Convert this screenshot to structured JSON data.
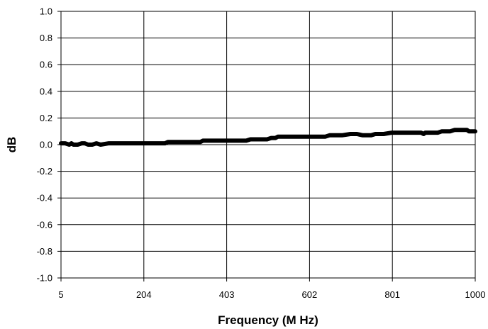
{
  "chart_data": {
    "type": "line",
    "title": "",
    "xlabel": "Frequency (M Hz)",
    "ylabel": "dB",
    "x_ticks": [
      "5",
      "204",
      "403",
      "602",
      "801",
      "1000"
    ],
    "y_ticks": [
      "1.0",
      "0.8",
      "0.6",
      "0.4",
      "0.2",
      "0.0",
      "-0.2",
      "-0.4",
      "-0.6",
      "-0.8",
      "-1.0"
    ],
    "xlim": [
      5,
      1000
    ],
    "ylim": [
      -1.0,
      1.0
    ],
    "grid": true,
    "legend": "none",
    "series": [
      {
        "color": "#000000",
        "x": [
          5,
          15,
          25,
          30,
          35,
          45,
          55,
          62,
          70,
          80,
          90,
          100,
          120,
          150,
          180,
          200,
          230,
          255,
          262,
          270,
          300,
          330,
          340,
          346,
          380,
          400,
          430,
          450,
          460,
          470,
          500,
          510,
          520,
          526,
          560,
          600,
          620,
          640,
          650,
          660,
          680,
          700,
          710,
          716,
          730,
          750,
          760,
          780,
          800,
          820,
          840,
          860,
          870,
          876,
          880,
          890,
          900,
          910,
          920,
          930,
          940,
          950,
          960,
          965,
          970,
          975,
          980,
          985,
          990,
          1000
        ],
        "y": [
          0.01,
          0.01,
          0.0,
          0.01,
          0.0,
          0.0,
          0.01,
          0.01,
          0.0,
          0.0,
          0.01,
          0.0,
          0.01,
          0.01,
          0.01,
          0.01,
          0.01,
          0.01,
          0.02,
          0.02,
          0.02,
          0.02,
          0.02,
          0.03,
          0.03,
          0.03,
          0.03,
          0.03,
          0.04,
          0.04,
          0.04,
          0.05,
          0.05,
          0.06,
          0.06,
          0.06,
          0.06,
          0.06,
          0.07,
          0.07,
          0.07,
          0.08,
          0.08,
          0.08,
          0.07,
          0.07,
          0.08,
          0.08,
          0.09,
          0.09,
          0.09,
          0.09,
          0.09,
          0.08,
          0.09,
          0.09,
          0.09,
          0.09,
          0.1,
          0.1,
          0.1,
          0.11,
          0.11,
          0.11,
          0.11,
          0.11,
          0.11,
          0.1,
          0.1,
          0.1
        ]
      }
    ]
  }
}
